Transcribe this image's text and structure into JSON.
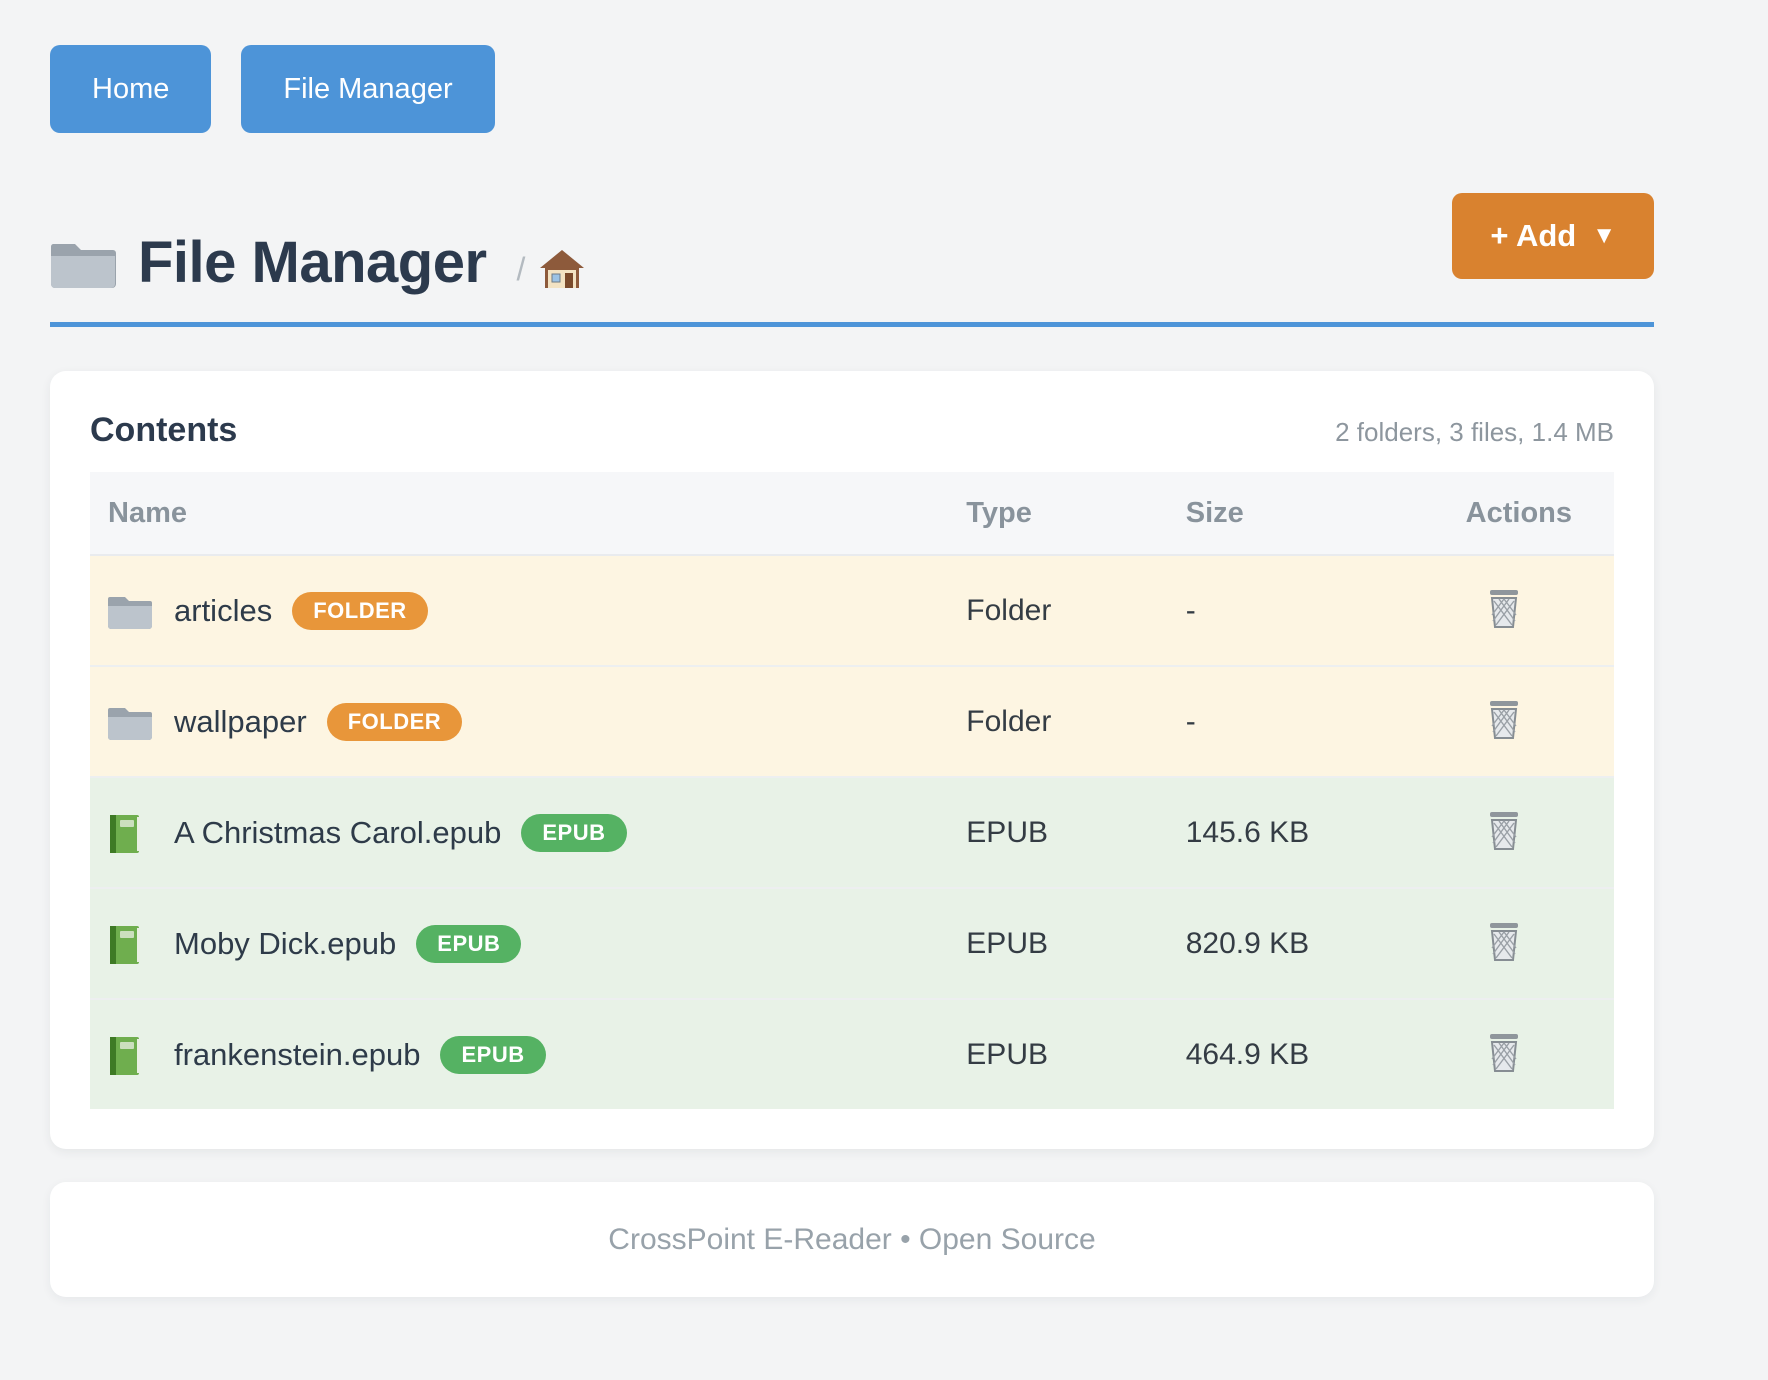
{
  "nav": {
    "home_label": "Home",
    "file_manager_label": "File Manager"
  },
  "header": {
    "title": "File Manager",
    "title_icon": "folder-icon",
    "breadcrumb_separator": "/",
    "breadcrumb_home_icon": "home-icon",
    "add_label": "+ Add",
    "add_caret": "▼"
  },
  "contents": {
    "heading": "Contents",
    "summary": "2 folders, 3 files, 1.4 MB",
    "columns": [
      "Name",
      "Type",
      "Size",
      "Actions"
    ],
    "rows": [
      {
        "name": "articles",
        "badge": "FOLDER",
        "kind": "folder",
        "icon": "folder-icon",
        "type": "Folder",
        "size": "-",
        "action_icon": "trash-icon"
      },
      {
        "name": "wallpaper",
        "badge": "FOLDER",
        "kind": "folder",
        "icon": "folder-icon",
        "type": "Folder",
        "size": "-",
        "action_icon": "trash-icon"
      },
      {
        "name": "A Christmas Carol.epub",
        "badge": "EPUB",
        "kind": "epub",
        "icon": "book-icon",
        "type": "EPUB",
        "size": "145.6 KB",
        "action_icon": "trash-icon"
      },
      {
        "name": "Moby Dick.epub",
        "badge": "EPUB",
        "kind": "epub",
        "icon": "book-icon",
        "type": "EPUB",
        "size": "820.9 KB",
        "action_icon": "trash-icon"
      },
      {
        "name": "frankenstein.epub",
        "badge": "EPUB",
        "kind": "epub",
        "icon": "book-icon",
        "type": "EPUB",
        "size": "464.9 KB",
        "action_icon": "trash-icon"
      }
    ]
  },
  "footer": {
    "text": "CrossPoint E-Reader • Open Source"
  },
  "colors": {
    "page_bg": "#f3f4f5",
    "primary_blue": "#4d94d8",
    "accent_orange": "#d9822f",
    "badge_folder": "#e8963a",
    "badge_epub": "#55b263",
    "row_folder_bg": "#fdf5e2",
    "row_epub_bg": "#e8f2e7",
    "header_row_bg": "#f6f7f9",
    "heading": "#2c3a4d",
    "muted": "#8d969e"
  }
}
